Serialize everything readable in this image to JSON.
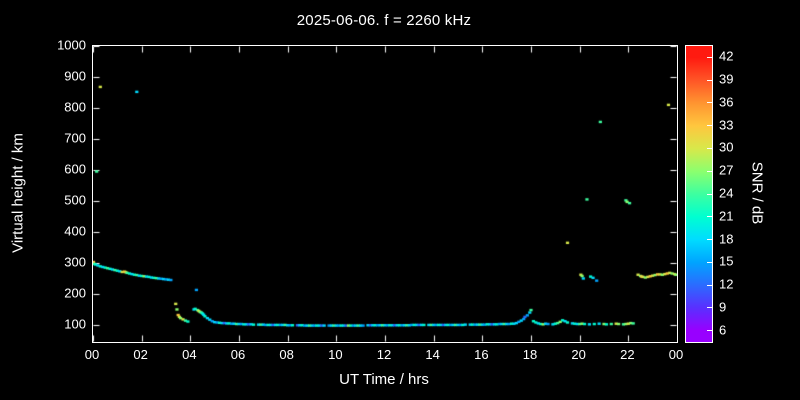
{
  "chart_data": {
    "type": "scatter",
    "title": "2025-06-06. f = 2260 kHz",
    "xlabel": "UT Time / hrs",
    "ylabel": "Virtual height / km",
    "background": "#000000",
    "frame_color": "#ffffff",
    "grid": false,
    "xlim": [
      0,
      24
    ],
    "ylim": [
      45,
      1000
    ],
    "x_tick_values": [
      0,
      2,
      4,
      6,
      8,
      10,
      12,
      14,
      16,
      18,
      20,
      22,
      24
    ],
    "x_tick_labels": [
      "00",
      "02",
      "04",
      "06",
      "08",
      "10",
      "12",
      "14",
      "16",
      "18",
      "20",
      "22",
      "00"
    ],
    "y_tick_values": [
      100,
      200,
      300,
      400,
      500,
      600,
      700,
      800,
      900,
      1000
    ],
    "y_tick_labels": [
      "100",
      "200",
      "300",
      "400",
      "500",
      "600",
      "700",
      "800",
      "900",
      "1000"
    ],
    "colorbar": {
      "label": "SNR / dB",
      "min": 4.5,
      "max": 43.5,
      "tick_values": [
        6,
        9,
        12,
        15,
        18,
        21,
        24,
        27,
        30,
        33,
        36,
        39,
        42
      ],
      "tick_labels": [
        "6",
        "9",
        "12",
        "15",
        "18",
        "21",
        "24",
        "27",
        "30",
        "33",
        "36",
        "39",
        "42"
      ],
      "stops": [
        [
          6,
          "#9800ff"
        ],
        [
          9,
          "#5a2fff"
        ],
        [
          12,
          "#2b6bff"
        ],
        [
          15,
          "#00a4ff"
        ],
        [
          18,
          "#00dcff"
        ],
        [
          21,
          "#00ffd0"
        ],
        [
          24,
          "#3dffa0"
        ],
        [
          27,
          "#8cff6e"
        ],
        [
          30,
          "#d8e84a"
        ],
        [
          33,
          "#ffc63e"
        ],
        [
          36,
          "#ff9430"
        ],
        [
          39,
          "#ff5526"
        ],
        [
          42,
          "#ff1a10"
        ]
      ]
    },
    "points": [
      [
        0.0,
        300,
        30
      ],
      [
        0.02,
        303,
        33
      ],
      [
        0.05,
        297,
        24
      ],
      [
        0.1,
        295,
        21
      ],
      [
        0.2,
        292,
        18
      ],
      [
        0.3,
        289,
        21
      ],
      [
        0.4,
        287,
        18
      ],
      [
        0.5,
        285,
        21
      ],
      [
        0.6,
        283,
        24
      ],
      [
        0.7,
        281,
        21
      ],
      [
        0.8,
        279,
        18
      ],
      [
        0.9,
        277,
        24
      ],
      [
        1.0,
        275,
        21
      ],
      [
        1.1,
        273,
        18
      ],
      [
        1.2,
        271,
        30
      ],
      [
        1.3,
        272,
        33
      ],
      [
        1.35,
        270,
        30
      ],
      [
        1.4,
        268,
        24
      ],
      [
        1.5,
        266,
        21
      ],
      [
        1.6,
        264,
        18
      ],
      [
        1.7,
        262,
        21
      ],
      [
        1.8,
        261,
        24
      ],
      [
        1.9,
        259,
        18
      ],
      [
        2.0,
        258,
        21
      ],
      [
        2.1,
        257,
        27
      ],
      [
        2.2,
        256,
        18
      ],
      [
        2.3,
        255,
        21
      ],
      [
        2.4,
        253,
        18
      ],
      [
        2.5,
        252,
        21
      ],
      [
        2.6,
        251,
        24
      ],
      [
        2.7,
        250,
        18
      ],
      [
        2.8,
        249,
        15
      ],
      [
        2.9,
        248,
        18
      ],
      [
        3.0,
        247,
        15
      ],
      [
        3.1,
        246,
        18
      ],
      [
        3.2,
        245,
        15
      ],
      [
        0.15,
        595,
        24
      ],
      [
        0.3,
        868,
        30
      ],
      [
        1.8,
        852,
        18
      ],
      [
        3.4,
        168,
        30
      ],
      [
        3.45,
        150,
        27
      ],
      [
        3.5,
        132,
        33
      ],
      [
        3.55,
        126,
        30
      ],
      [
        3.6,
        122,
        27
      ],
      [
        3.7,
        118,
        30
      ],
      [
        3.8,
        114,
        24
      ],
      [
        3.9,
        111,
        21
      ],
      [
        4.15,
        150,
        18
      ],
      [
        4.2,
        152,
        21
      ],
      [
        4.25,
        213,
        15
      ],
      [
        4.3,
        148,
        24
      ],
      [
        4.35,
        145,
        30
      ],
      [
        4.4,
        142,
        27
      ],
      [
        4.45,
        140,
        24
      ],
      [
        4.5,
        137,
        21
      ],
      [
        4.55,
        133,
        18
      ],
      [
        4.6,
        128,
        21
      ],
      [
        4.7,
        122,
        18
      ],
      [
        4.8,
        117,
        18
      ],
      [
        4.9,
        112,
        15
      ],
      [
        5.0,
        109,
        18
      ],
      [
        5.1,
        108,
        15
      ],
      [
        5.2,
        107,
        21
      ],
      [
        5.3,
        106,
        18
      ],
      [
        5.4,
        106,
        12
      ],
      [
        5.5,
        105,
        18
      ],
      [
        5.6,
        105,
        21
      ],
      [
        5.7,
        104,
        15
      ],
      [
        5.8,
        104,
        18
      ],
      [
        5.9,
        103,
        24
      ],
      [
        6.0,
        103,
        18
      ],
      [
        6.1,
        103,
        15
      ],
      [
        6.2,
        102,
        21
      ],
      [
        6.3,
        102,
        18
      ],
      [
        6.4,
        102,
        12
      ],
      [
        6.5,
        102,
        18
      ],
      [
        6.6,
        101,
        21
      ],
      [
        6.8,
        101,
        18
      ],
      [
        6.9,
        101,
        24
      ],
      [
        7.0,
        101,
        18
      ],
      [
        7.1,
        100,
        15
      ],
      [
        7.2,
        100,
        21
      ],
      [
        7.3,
        100,
        18
      ],
      [
        7.4,
        100,
        12
      ],
      [
        7.5,
        100,
        18
      ],
      [
        7.6,
        100,
        21
      ],
      [
        7.7,
        100,
        15
      ],
      [
        7.8,
        100,
        18
      ],
      [
        7.9,
        100,
        24
      ],
      [
        8.0,
        99,
        18
      ],
      [
        8.1,
        99,
        15
      ],
      [
        8.2,
        99,
        21
      ],
      [
        8.4,
        99,
        12
      ],
      [
        8.5,
        99,
        18
      ],
      [
        8.6,
        99,
        21
      ],
      [
        8.7,
        98,
        15
      ],
      [
        8.8,
        98,
        18
      ],
      [
        8.9,
        98,
        24
      ],
      [
        9.0,
        98,
        18
      ],
      [
        9.1,
        98,
        15
      ],
      [
        9.2,
        98,
        21
      ],
      [
        9.3,
        98,
        18
      ],
      [
        9.4,
        98,
        12
      ],
      [
        9.5,
        98,
        18
      ],
      [
        9.7,
        98,
        15
      ],
      [
        9.8,
        98,
        18
      ],
      [
        9.9,
        98,
        24
      ],
      [
        10.0,
        98,
        18
      ],
      [
        10.1,
        98,
        15
      ],
      [
        10.2,
        98,
        21
      ],
      [
        10.3,
        98,
        18
      ],
      [
        10.4,
        98,
        12
      ],
      [
        10.5,
        98,
        27
      ],
      [
        10.6,
        98,
        21
      ],
      [
        10.7,
        98,
        15
      ],
      [
        10.8,
        98,
        18
      ],
      [
        10.9,
        98,
        24
      ],
      [
        11.0,
        98,
        18
      ],
      [
        11.1,
        98,
        15
      ],
      [
        11.3,
        99,
        18
      ],
      [
        11.4,
        99,
        12
      ],
      [
        11.5,
        99,
        18
      ],
      [
        11.6,
        99,
        21
      ],
      [
        11.7,
        99,
        15
      ],
      [
        11.8,
        99,
        18
      ],
      [
        11.9,
        99,
        24
      ],
      [
        12.0,
        99,
        18
      ],
      [
        12.1,
        99,
        15
      ],
      [
        12.2,
        99,
        21
      ],
      [
        12.3,
        99,
        18
      ],
      [
        12.4,
        99,
        12
      ],
      [
        12.5,
        99,
        18
      ],
      [
        12.6,
        99,
        21
      ],
      [
        12.7,
        99,
        15
      ],
      [
        12.8,
        99,
        18
      ],
      [
        12.9,
        99,
        24
      ],
      [
        13.0,
        99,
        18
      ],
      [
        13.1,
        100,
        15
      ],
      [
        13.2,
        100,
        21
      ],
      [
        13.3,
        100,
        18
      ],
      [
        13.4,
        100,
        12
      ],
      [
        13.5,
        100,
        18
      ],
      [
        13.6,
        100,
        21
      ],
      [
        13.8,
        100,
        18
      ],
      [
        13.9,
        100,
        24
      ],
      [
        14.0,
        100,
        18
      ],
      [
        14.1,
        100,
        15
      ],
      [
        14.2,
        100,
        21
      ],
      [
        14.3,
        100,
        18
      ],
      [
        14.4,
        100,
        12
      ],
      [
        14.5,
        100,
        18
      ],
      [
        14.6,
        100,
        21
      ],
      [
        14.7,
        100,
        15
      ],
      [
        14.8,
        100,
        18
      ],
      [
        14.9,
        100,
        24
      ],
      [
        15.0,
        100,
        18
      ],
      [
        15.1,
        100,
        15
      ],
      [
        15.2,
        100,
        21
      ],
      [
        15.3,
        101,
        18
      ],
      [
        15.5,
        101,
        18
      ],
      [
        15.6,
        101,
        21
      ],
      [
        15.7,
        101,
        15
      ],
      [
        15.8,
        101,
        18
      ],
      [
        15.9,
        101,
        24
      ],
      [
        16.0,
        101,
        18
      ],
      [
        16.1,
        101,
        15
      ],
      [
        16.2,
        102,
        21
      ],
      [
        16.3,
        102,
        18
      ],
      [
        16.4,
        102,
        12
      ],
      [
        16.5,
        102,
        18
      ],
      [
        16.6,
        102,
        21
      ],
      [
        16.7,
        103,
        15
      ],
      [
        16.8,
        103,
        18
      ],
      [
        16.9,
        103,
        24
      ],
      [
        17.0,
        103,
        18
      ],
      [
        17.1,
        103,
        15
      ],
      [
        17.2,
        104,
        21
      ],
      [
        17.3,
        104,
        18
      ],
      [
        17.4,
        106,
        18
      ],
      [
        17.5,
        110,
        15
      ],
      [
        17.6,
        114,
        18
      ],
      [
        17.7,
        119,
        15
      ],
      [
        17.75,
        126,
        12
      ],
      [
        17.85,
        131,
        15
      ],
      [
        17.95,
        140,
        18
      ],
      [
        18.0,
        148,
        24
      ],
      [
        18.1,
        112,
        21
      ],
      [
        18.2,
        108,
        21
      ],
      [
        18.3,
        105,
        18
      ],
      [
        18.4,
        103,
        21
      ],
      [
        18.5,
        102,
        27
      ],
      [
        18.6,
        104,
        18
      ],
      [
        18.7,
        103,
        15
      ],
      [
        18.9,
        102,
        18
      ],
      [
        19.0,
        104,
        21
      ],
      [
        19.1,
        106,
        24
      ],
      [
        19.2,
        110,
        27
      ],
      [
        19.3,
        115,
        21
      ],
      [
        19.4,
        112,
        18
      ],
      [
        19.5,
        108,
        21
      ],
      [
        19.7,
        105,
        18
      ],
      [
        19.8,
        104,
        21
      ],
      [
        19.9,
        103,
        18
      ],
      [
        20.0,
        103,
        24
      ],
      [
        20.1,
        104,
        27
      ],
      [
        20.2,
        103,
        21
      ],
      [
        20.4,
        102,
        18
      ],
      [
        20.6,
        103,
        21
      ],
      [
        20.8,
        104,
        18
      ],
      [
        21.0,
        103,
        27
      ],
      [
        21.1,
        102,
        21
      ],
      [
        21.3,
        103,
        24
      ],
      [
        21.5,
        104,
        30
      ],
      [
        21.6,
        103,
        27
      ],
      [
        21.8,
        102,
        24
      ],
      [
        21.9,
        103,
        27
      ],
      [
        22.0,
        104,
        30
      ],
      [
        22.1,
        106,
        27
      ],
      [
        22.2,
        105,
        24
      ],
      [
        19.5,
        365,
        30
      ],
      [
        20.05,
        262,
        30
      ],
      [
        20.1,
        258,
        27
      ],
      [
        20.15,
        250,
        18
      ],
      [
        20.45,
        256,
        21
      ],
      [
        20.55,
        252,
        18
      ],
      [
        20.7,
        243,
        15
      ],
      [
        20.3,
        505,
        24
      ],
      [
        20.85,
        755,
        24
      ],
      [
        21.9,
        502,
        24
      ],
      [
        21.95,
        497,
        27
      ],
      [
        22.05,
        493,
        24
      ],
      [
        23.65,
        810,
        30
      ],
      [
        22.4,
        262,
        30
      ],
      [
        22.5,
        258,
        27
      ],
      [
        22.55,
        256,
        33
      ],
      [
        22.6,
        255,
        30
      ],
      [
        22.7,
        253,
        27
      ],
      [
        22.8,
        255,
        30
      ],
      [
        22.9,
        257,
        33
      ],
      [
        23.0,
        259,
        30
      ],
      [
        23.1,
        261,
        27
      ],
      [
        23.2,
        263,
        33
      ],
      [
        23.3,
        263,
        30
      ],
      [
        23.4,
        262,
        27
      ],
      [
        23.5,
        264,
        30
      ],
      [
        23.6,
        266,
        33
      ],
      [
        23.7,
        268,
        30
      ],
      [
        23.8,
        266,
        27
      ],
      [
        23.9,
        264,
        30
      ],
      [
        23.95,
        262,
        27
      ]
    ]
  }
}
